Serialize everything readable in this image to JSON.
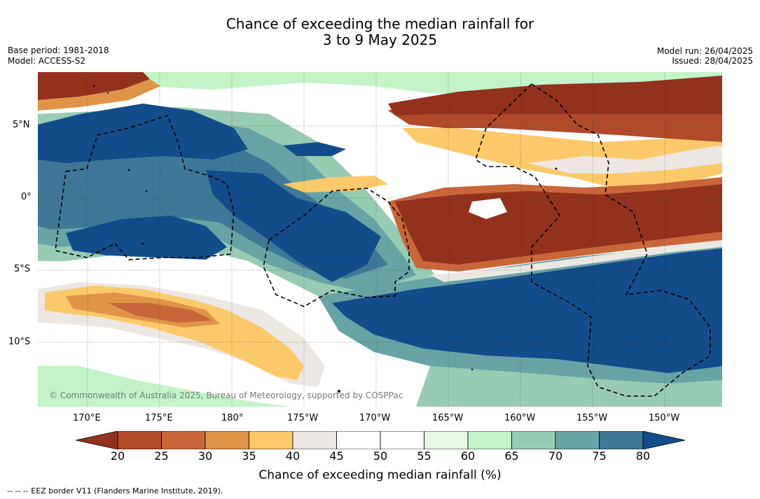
{
  "title": {
    "line1": "Chance of exceeding the median rainfall for",
    "line2": "3 to 9 May 2025"
  },
  "meta_left": {
    "base_period": "Base period: 1981-2018",
    "model": "Model: ACCESS-S2"
  },
  "meta_right": {
    "model_run": "Model run: 26/04/2025",
    "issued": "Issued: 28/04/2025"
  },
  "axes": {
    "lat_ticks": [
      "5°N",
      "0°",
      "5°S",
      "10°S"
    ],
    "lon_ticks": [
      "170°E",
      "175°E",
      "180°",
      "175°W",
      "170°W",
      "165°W",
      "160°W",
      "155°W",
      "150°W"
    ]
  },
  "copyright": "© Commonwealth of Australia 2025, Bureau of Meteorology, supported by COSPPac",
  "colorbar": {
    "title": "Chance of exceeding median rainfall (%)",
    "tick_labels": [
      "20",
      "25",
      "30",
      "35",
      "40",
      "45",
      "50",
      "55",
      "60",
      "65",
      "70",
      "75",
      "80"
    ],
    "colors": [
      "#93311f",
      "#b04a2a",
      "#c8663a",
      "#df9448",
      "#fcc96a",
      "#ece7e2",
      "#ffffff",
      "#ffffff",
      "#e9f5e7",
      "#c2f4c8",
      "#98cbb4",
      "#68a3a5",
      "#3e7896",
      "#134c8b"
    ]
  },
  "footnote": "-- -- -- EEZ border V11 (Flanders Marine Institute, 2019)."
}
